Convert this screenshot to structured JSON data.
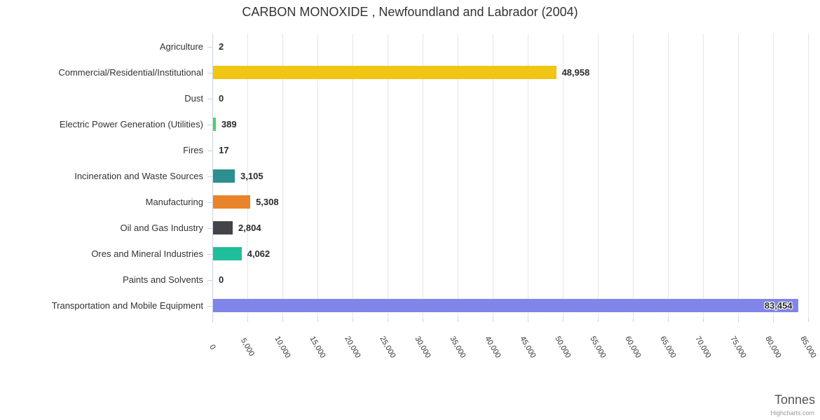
{
  "title": "CARBON MONOXIDE , Newfoundland and Labrador (2004)",
  "credits": "Highcharts.com",
  "chart_data": {
    "type": "bar",
    "title": "CARBON MONOXIDE , Newfoundland and Labrador (2004)",
    "orientation": "horizontal",
    "categories": [
      "Agriculture",
      "Commercial/Residential/Institutional",
      "Dust",
      "Electric Power Generation (Utilities)",
      "Fires",
      "Incineration and Waste Sources",
      "Manufacturing",
      "Oil and Gas Industry",
      "Ores and Mineral Industries",
      "Paints and Solvents",
      "Transportation and Mobile Equipment"
    ],
    "values": [
      2,
      48958,
      0,
      389,
      17,
      3105,
      5308,
      2804,
      4062,
      0,
      83454
    ],
    "value_labels": [
      "2",
      "48,958",
      "0",
      "389",
      "17",
      "3,105",
      "5,308",
      "2,804",
      "4,062",
      "0",
      "83,454"
    ],
    "bar_colors": [
      null,
      "#f0c514",
      null,
      "#4dd165",
      null,
      "#2b908f",
      "#e8842a",
      "#434348",
      "#1fbf9c",
      null,
      "#8085e9"
    ],
    "label_inside": [
      false,
      false,
      false,
      false,
      false,
      false,
      false,
      false,
      false,
      false,
      true
    ],
    "xlabel": "Tonnes",
    "axis": {
      "min": 0,
      "max": 85000,
      "tick_interval": 5000,
      "tick_labels": [
        "0",
        "5,000",
        "10,000",
        "15,000",
        "20,000",
        "25,000",
        "30,000",
        "35,000",
        "40,000",
        "45,000",
        "50,000",
        "55,000",
        "60,000",
        "65,000",
        "70,000",
        "75,000",
        "80,000",
        "85,000"
      ]
    },
    "grid": true,
    "legend": false,
    "colors": {
      "grid_line": "#e6e6e6",
      "axis_line": "#c9d2e4",
      "text": "#333333",
      "data_label": "#2b2b2b"
    }
  }
}
